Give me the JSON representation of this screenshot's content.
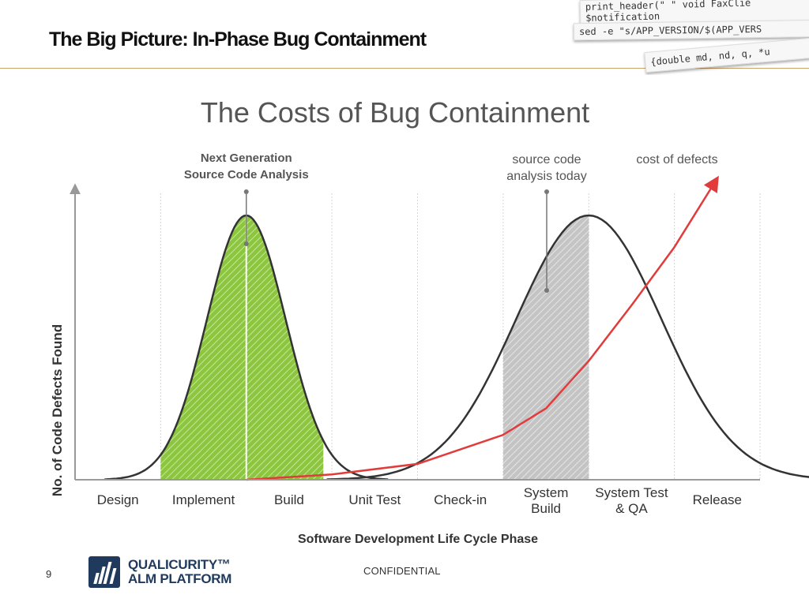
{
  "slide": {
    "title": "The Big Picture:  In-Phase Bug Containment",
    "page_number": "9",
    "confidential": "CONFIDENTIAL",
    "logo_line1": "QUALICURITY™",
    "logo_line2": "ALM PLATFORM"
  },
  "code_strips": {
    "line1": "print_header(\"   \"    void FaxClie",
    "line1b": "   $notification",
    "line2": "sed -e \"s/APP_VERSION/$(APP_VERS",
    "line3": "{double md, nd, q, *u"
  },
  "colors": {
    "green_fill": "#8cc63f",
    "grey_fill": "#c4c4c4",
    "curve_stroke": "#333333",
    "cost_curve": "#e23b3b",
    "axis": "#999999",
    "gridline": "#d5d5d5"
  },
  "chart_data": {
    "type": "line",
    "title": "The Costs of Bug Containment",
    "xlabel": "Software Development Life Cycle Phase",
    "ylabel": "No. of Code Defects Found",
    "categories": [
      "Design",
      "Implement",
      "Build",
      "Unit Test",
      "Check-in",
      "System Build",
      "System Test & QA",
      "Release"
    ],
    "x_tick_labels": [
      {
        "text": "Design"
      },
      {
        "text": "Implement"
      },
      {
        "text": "Build"
      },
      {
        "text": "Unit Test"
      },
      {
        "text": "Check-in"
      },
      {
        "lines": [
          "System",
          "Build"
        ]
      },
      {
        "lines": [
          "System Test",
          "& QA"
        ]
      },
      {
        "text": "Release"
      }
    ],
    "xlim": [
      0,
      8
    ],
    "ylim": [
      0,
      1
    ],
    "grid": true,
    "series": [
      {
        "name": "Next Generation Source Code Analysis",
        "kind": "bell",
        "peak_x": 2.0,
        "spread": 0.46,
        "peak_y": 1.0,
        "shade_from": 1.0,
        "shade_to": 2.9,
        "shade_color": "green"
      },
      {
        "name": "source code analysis today",
        "kind": "bell",
        "peak_x": 6.0,
        "spread": 0.85,
        "peak_y": 1.0,
        "shade_from": 5.0,
        "shade_to": 6.0,
        "shade_color": "grey"
      },
      {
        "name": "cost of defects",
        "kind": "exponential",
        "x": [
          2.0,
          3.0,
          4.0,
          5.0,
          5.5,
          6.0,
          6.5,
          7.0,
          7.5
        ],
        "y": [
          0.0,
          0.02,
          0.06,
          0.17,
          0.27,
          0.45,
          0.66,
          0.88,
          1.14
        ]
      }
    ],
    "annotations": {
      "next_gen": [
        "Next Generation",
        "Source Code Analysis"
      ],
      "today": [
        "source code",
        "analysis today"
      ],
      "cost": "cost of defects"
    }
  }
}
